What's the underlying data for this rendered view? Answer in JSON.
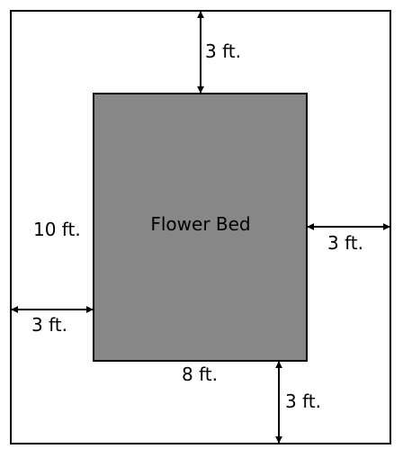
{
  "diagram": {
    "inner_label": "Flower Bed",
    "bed_height_label": "10 ft.",
    "bed_width_label": "8 ft.",
    "margin_top_label": "3 ft.",
    "margin_right_label": "3 ft.",
    "margin_left_label": "3 ft.",
    "margin_bottom_label": "3 ft.",
    "colors": {
      "bed_fill": "#878787",
      "outline": "#000000",
      "background": "#ffffff"
    }
  }
}
